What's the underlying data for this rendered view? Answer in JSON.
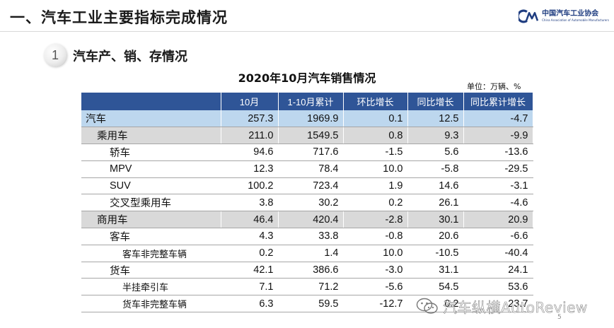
{
  "header": {
    "title": "一、汽车工业主要指标完成情况",
    "logo_cn": "中国汽车工业协会",
    "logo_en": "China Association of Automobile Manufacturers",
    "logo_mark_text": "CM",
    "brand_color": "#1f3d80"
  },
  "section": {
    "number": "1",
    "title": "汽车产、销、存情况"
  },
  "table": {
    "title": "2020年10月汽车销售情况",
    "unit": "单位：万辆、%",
    "header_color": "#2f5597",
    "columns": [
      "",
      "10月",
      "1-10月累计",
      "环比增长",
      "同比增长",
      "同比累计增长"
    ],
    "rows": [
      {
        "label": "汽车",
        "level": 0,
        "values": [
          "257.3",
          "1969.9",
          "0.1",
          "12.5",
          "-4.7"
        ]
      },
      {
        "label": "乘用车",
        "level": 1,
        "values": [
          "211.0",
          "1549.5",
          "0.8",
          "9.3",
          "-9.9"
        ]
      },
      {
        "label": "轿车",
        "level": 2,
        "values": [
          "94.6",
          "717.6",
          "-1.5",
          "5.6",
          "-13.6"
        ]
      },
      {
        "label": "MPV",
        "level": 2,
        "values": [
          "12.3",
          "78.4",
          "10.0",
          "-5.8",
          "-29.5"
        ]
      },
      {
        "label": "SUV",
        "level": 2,
        "values": [
          "100.2",
          "723.4",
          "1.9",
          "14.6",
          "-3.1"
        ]
      },
      {
        "label": "交叉型乘用车",
        "level": 2,
        "values": [
          "3.8",
          "30.2",
          "0.2",
          "26.1",
          "-4.6"
        ]
      },
      {
        "label": "商用车",
        "level": 1,
        "values": [
          "46.4",
          "420.4",
          "-2.8",
          "30.1",
          "20.9"
        ]
      },
      {
        "label": "客车",
        "level": 2,
        "values": [
          "4.3",
          "33.8",
          "-0.8",
          "20.6",
          "-6.6"
        ]
      },
      {
        "label": "客车非完整车辆",
        "level": 3,
        "values": [
          "0.2",
          "1.4",
          "10.0",
          "-10.5",
          "-40.4"
        ]
      },
      {
        "label": "货车",
        "level": 2,
        "values": [
          "42.1",
          "386.6",
          "-3.0",
          "31.1",
          "24.1"
        ]
      },
      {
        "label": "半挂牵引车",
        "level": 3,
        "values": [
          "7.1",
          "71.2",
          "-5.6",
          "54.5",
          "53.6"
        ]
      },
      {
        "label": "货车非完整车辆",
        "level": 3,
        "values": [
          "6.3",
          "59.5",
          "-12.7",
          "0.2",
          "23.7"
        ]
      }
    ]
  },
  "watermark": {
    "text": "汽车纵横AutoReview",
    "icon": "wechat-icon"
  },
  "page_number": "5"
}
